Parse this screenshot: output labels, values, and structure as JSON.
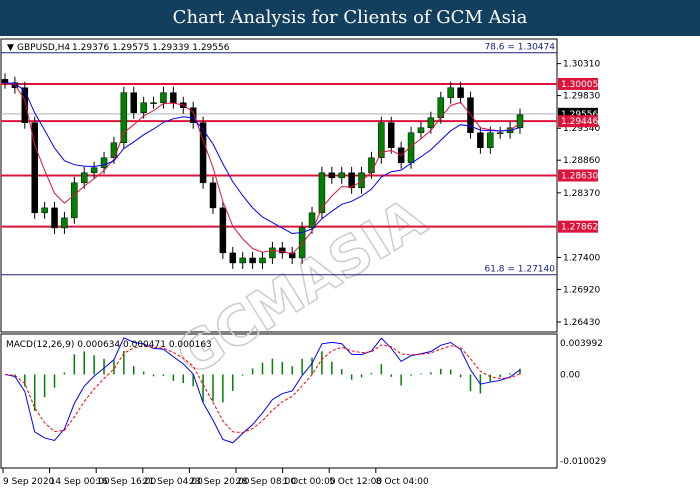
{
  "title": "Chart Analysis for Clients of GCM Asia",
  "watermark": "GCMASIA",
  "chart_data": {
    "type": "candlestick",
    "symbol_header": "GBPUSD,H4",
    "ohlc": "1.29376 1.29575 1.29339 1.29556",
    "price_axis": {
      "ylim": [
        1.2628,
        1.3068
      ],
      "ticks": [
        "1.30310",
        "1.29830",
        "1.29340",
        "1.28860",
        "1.28370",
        "1.27400",
        "1.26920",
        "1.26430"
      ]
    },
    "current_price": "1.29556",
    "x_ticks": [
      "9 Sep 2020",
      "14 Sep 00:00",
      "16 Sep 16:00",
      "21 Sep 04:00",
      "23 Sep 20:00",
      "28 Sep 08:00",
      "1 Oct 00:00",
      "5 Oct 12:00",
      "8 Oct 04:00"
    ],
    "closes": [
      1.30024,
      1.29949,
      1.29423,
      1.28069,
      1.28144,
      1.27843,
      1.27994,
      1.2852,
      1.28671,
      1.28746,
      1.28896,
      1.29122,
      1.29874,
      1.29573,
      1.29723,
      1.29723,
      1.29874,
      1.29723,
      1.29648,
      1.29423,
      1.2852,
      1.28144,
      1.27468,
      1.27317,
      1.27392,
      1.27317,
      1.27392,
      1.27543,
      1.27468,
      1.27392,
      1.27844,
      1.28069,
      1.28671,
      1.28595,
      1.28671,
      1.28445,
      1.28671,
      1.28896,
      1.29423,
      1.29047,
      1.28821,
      1.29272,
      1.29347,
      1.29498,
      1.29799,
      1.29949,
      1.29799,
      1.29272,
      1.29047,
      1.29272,
      1.29272,
      1.29347,
      1.29543
    ],
    "levels": [
      {
        "label": "78.6 = 1.30474",
        "value": 1.30474,
        "color": "#1a237e",
        "type": "fib"
      },
      {
        "label": "1.30005",
        "value": 1.30005,
        "color": "#dc143c",
        "type": "sr"
      },
      {
        "label": "1.29446",
        "value": 1.29446,
        "color": "#dc143c",
        "type": "sr"
      },
      {
        "label": "1.28630",
        "value": 1.2863,
        "color": "#dc143c",
        "type": "sr"
      },
      {
        "label": "1.27862",
        "value": 1.27862,
        "color": "#dc143c",
        "type": "sr"
      },
      {
        "label": "61.8 = 1.27140",
        "value": 1.2714,
        "color": "#1a237e",
        "type": "fib"
      }
    ],
    "macd": {
      "header": "MACD(12,26,9) 0.000634 0.000471 0.000163",
      "ticks": [
        "0.003992",
        "0.00",
        "-0.010029"
      ],
      "ylim": [
        -0.010029,
        0.003992
      ]
    },
    "colors": {
      "candle_up": "#008000",
      "candle_down": "#000000",
      "ma_fast": "#dc143c",
      "ma_slow": "#0000ff",
      "histogram": "#008000",
      "signal": "#ff0000"
    }
  }
}
